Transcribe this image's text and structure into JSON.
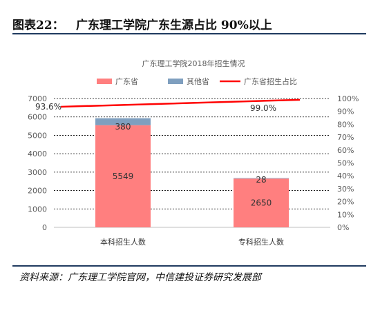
{
  "header": {
    "figure_no": "图表22：",
    "title": "广东理工学院广东生源占比 90%以上"
  },
  "source": "资料来源：广东理工学院官网，中信建投证券研究发展部",
  "colors": {
    "guangdong": "#ff7f7f",
    "other": "#7f9fbf",
    "ratio": "#ff0000"
  },
  "chart_data": {
    "type": "bar",
    "title": "广东理工学院2018年招生情况",
    "categories": [
      "本科招生人数",
      "专科招生人数"
    ],
    "series": [
      {
        "name": "广东省",
        "kind": "bar",
        "values": [
          5549,
          2650
        ],
        "labels": [
          "5549",
          "2650"
        ]
      },
      {
        "name": "其他省",
        "kind": "bar",
        "values": [
          380,
          28
        ],
        "labels": [
          "380",
          "28"
        ]
      },
      {
        "name": "广东省招生占比",
        "kind": "line",
        "axis": "right",
        "values": [
          93.6,
          99.0
        ],
        "labels": [
          "93.6%",
          "99.0%"
        ]
      }
    ],
    "y_left": {
      "ylim": [
        0,
        7000
      ],
      "ticks": [
        "0",
        "1000",
        "2000",
        "3000",
        "4000",
        "5000",
        "6000",
        "7000"
      ]
    },
    "y_right": {
      "ylim": [
        0,
        100
      ],
      "ticks": [
        "0%",
        "10%",
        "20%",
        "30%",
        "40%",
        "50%",
        "60%",
        "70%",
        "80%",
        "90%",
        "100%"
      ]
    },
    "grid": "horizontal-dashed",
    "legend": "top"
  }
}
